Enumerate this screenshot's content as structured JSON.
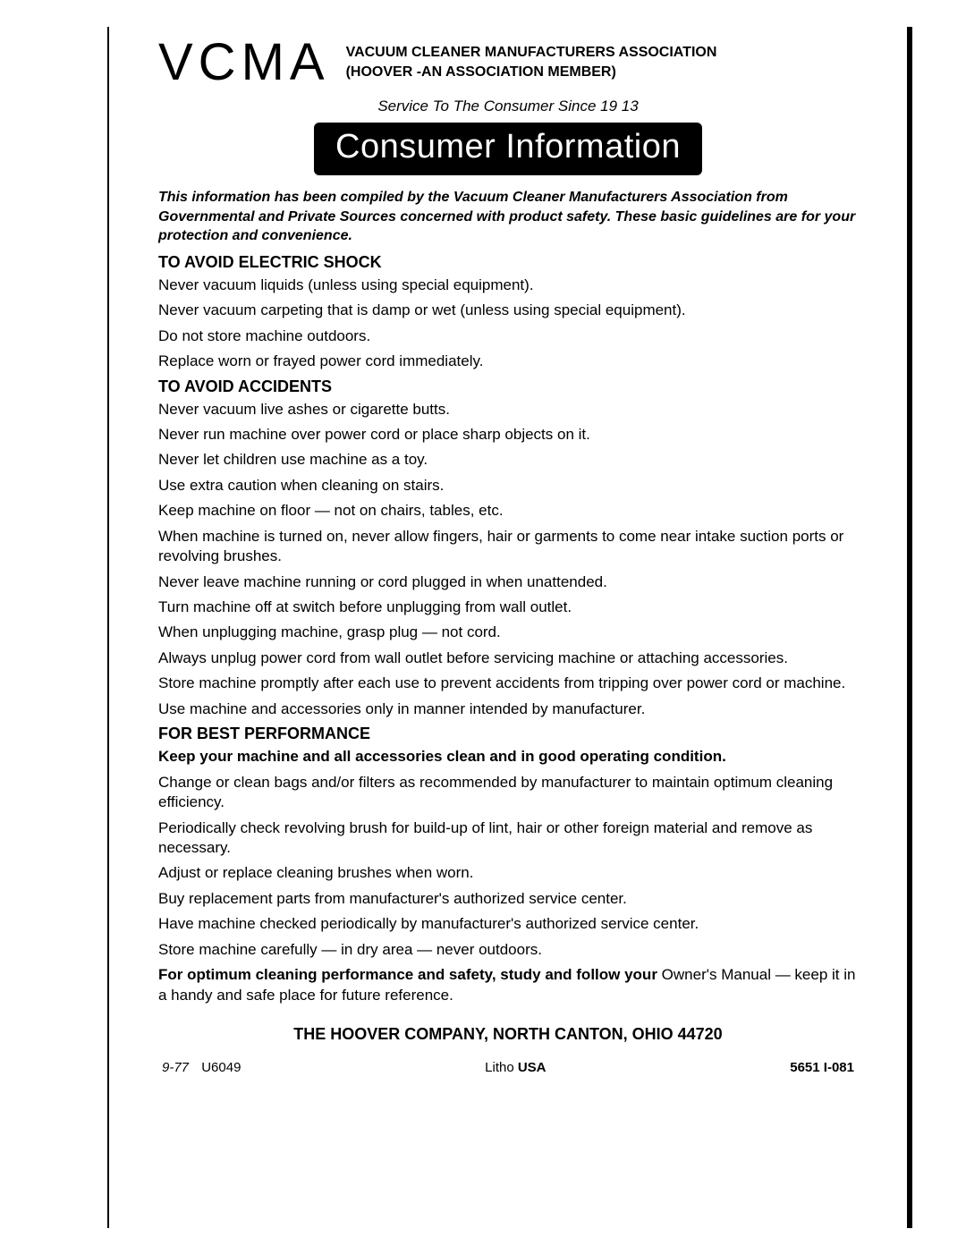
{
  "header": {
    "logo": "VCMA",
    "title_line1": "VACUUM CLEANER MANUFACTURERS ASSOCIATION",
    "title_line2": "(HOOVER -AN ASSOCIATION MEMBER)",
    "tagline": "Service To The Consumer Since 19 13",
    "banner": "Consumer Information"
  },
  "intro": "This information has been compiled by the Vacuum Cleaner Manufacturers Association from Governmental and Private Sources concerned with product safety. These basic guidelines are for your protection and convenience.",
  "sections": {
    "shock": {
      "heading": "TO AVOID ELECTRIC SHOCK",
      "items": [
        "Never vacuum liquids (unless using special equipment).",
        "Never vacuum carpeting that is damp or wet (unless using special equipment).",
        "Do not store machine outdoors.",
        "Replace worn or frayed power cord immediately."
      ]
    },
    "accidents": {
      "heading": "TO AVOID ACCIDENTS",
      "items": [
        "Never vacuum live ashes or cigarette butts.",
        "Never run machine over power cord or place sharp objects on it.",
        "Never let children use machine as a toy.",
        "Use extra caution when cleaning on stairs.",
        "Keep machine on floor — not on chairs, tables, etc.",
        "When machine is turned on, never allow fingers, hair or garments to come near intake suction ports or revolving brushes.",
        "Never leave machine running or cord plugged in when unattended.",
        "Turn machine off at switch before unplugging from wall outlet.",
        "When unplugging machine, grasp plug — not cord.",
        "Always unplug power cord from wall outlet before servicing machine or attaching accessories.",
        "Store machine promptly after each use to prevent accidents from tripping over power cord or machine.",
        "Use machine and accessories only in manner intended by manufacturer."
      ]
    },
    "performance": {
      "heading": "FOR BEST PERFORMANCE",
      "lead": "Keep your machine and all accessories clean and in good operating condition.",
      "items": [
        "Change or clean bags and/or filters as recommended by manufacturer to maintain optimum cleaning efficiency.",
        "Periodically check revolving brush for build-up of lint, hair or other foreign material and remove as necessary.",
        "Adjust or replace cleaning brushes when worn.",
        "Buy replacement parts from manufacturer's authorized service center.",
        "Have machine checked periodically by manufacturer's authorized service center.",
        "Store machine carefully — in dry area — never outdoors."
      ],
      "closing_bold": "For optimum cleaning performance and safety, study and follow your",
      "closing_rest": "Owner's Manual — keep it in a handy and safe place for future reference."
    }
  },
  "footer": {
    "company": "THE HOOVER COMPANY, NORTH CANTON, OHIO 44720",
    "left_italic": "9-77",
    "left_code": "U6049",
    "mid": "Litho USA",
    "right": "5651 I-081"
  }
}
